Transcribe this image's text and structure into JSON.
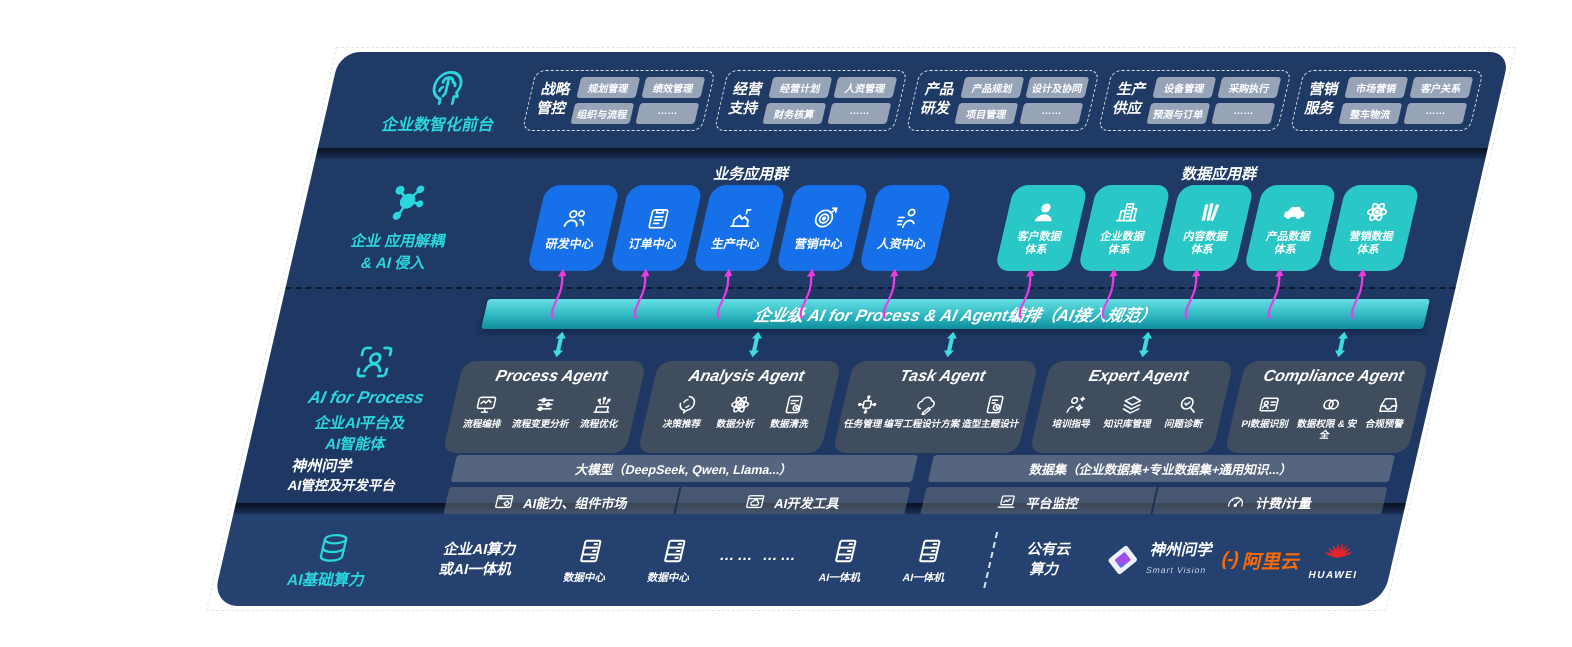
{
  "palette": {
    "band": "#203a66",
    "band_bottom": "#25416f",
    "cyan_accent": "#2bd7de",
    "blue_card": "#1570ea",
    "teal_card": "#29c7c5",
    "bus_bar_top": "#66dfe3",
    "bus_bar_bottom": "#0f8d9c",
    "agent_card": "#424e5f",
    "pink_arrow": "#ec3be2",
    "ali_orange": "#ff6a00",
    "huawei_red": "#e4232e"
  },
  "front": {
    "label": "企业数智化前台",
    "icon": "head-brain",
    "groups": [
      {
        "title": "战略管控",
        "chips": [
          "规划管理",
          "绩效管理",
          "组织与流程",
          "……"
        ]
      },
      {
        "title": "经营支持",
        "chips": [
          "经营计划",
          "人资管理",
          "财务核算",
          "……"
        ]
      },
      {
        "title": "产品研发",
        "chips": [
          "产品规划",
          "设计及协同",
          "项目管理",
          "……"
        ]
      },
      {
        "title": "生产供应",
        "chips": [
          "设备管理",
          "采购执行",
          "预测与订单",
          "……"
        ]
      },
      {
        "title": "营销服务",
        "chips": [
          "市场营销",
          "客户关系",
          "整车物流",
          "……"
        ]
      }
    ]
  },
  "decouple": {
    "label_line1": "企业 应用解耦",
    "label_line2": "& AI 侵入",
    "icon": "molecule",
    "biz": {
      "title": "业务应用群",
      "cards": [
        {
          "label": "研发中心",
          "icon": "people"
        },
        {
          "label": "订单中心",
          "icon": "clipboard"
        },
        {
          "label": "生产中心",
          "icon": "factory"
        },
        {
          "label": "营销中心",
          "icon": "target"
        },
        {
          "label": "人资中心",
          "icon": "person-wave"
        }
      ]
    },
    "data": {
      "title": "数据应用群",
      "cards": [
        {
          "label": "客户数据体系",
          "icon": "user"
        },
        {
          "label": "企业数据体系",
          "icon": "building"
        },
        {
          "label": "内容数据体系",
          "icon": "books"
        },
        {
          "label": "产品数据体系",
          "icon": "car"
        },
        {
          "label": "营销数据体系",
          "icon": "atom"
        }
      ]
    }
  },
  "platform": {
    "label_line1": "AI for Process",
    "label_line2": "企业AI平台及",
    "label_line3": "AI智能体",
    "icon": "scan-person",
    "bus_bar": "企业级 AI for Process & AI Agent编排（AI接入规范）",
    "agents": [
      {
        "name": "Process Agent",
        "items": [
          {
            "label": "流程编排",
            "icon": "monitor-wave"
          },
          {
            "label": "流程变更分析",
            "icon": "sliders"
          },
          {
            "label": "流程优化",
            "icon": "spark-box"
          }
        ]
      },
      {
        "name": "Analysis Agent",
        "items": [
          {
            "label": "决策推荐",
            "icon": "chat-head"
          },
          {
            "label": "数据分析",
            "icon": "atom"
          },
          {
            "label": "数据清洗",
            "icon": "doc-data"
          }
        ]
      },
      {
        "name": "Task Agent",
        "items": [
          {
            "label": "任务管理",
            "icon": "grid-node"
          },
          {
            "label": "编写工程设计方案",
            "icon": "cloud-pen"
          },
          {
            "label": "造型主题设计",
            "icon": "tablet-check"
          }
        ]
      },
      {
        "name": "Expert Agent",
        "items": [
          {
            "label": "培训指导",
            "icon": "person-spark"
          },
          {
            "label": "知识库管理",
            "icon": "layers"
          },
          {
            "label": "问题诊断",
            "icon": "search-check"
          }
        ]
      },
      {
        "name": "Compliance Agent",
        "items": [
          {
            "label": "PI数据识别",
            "icon": "id-card"
          },
          {
            "label": "数据权限 & 安全",
            "icon": "rings"
          },
          {
            "label": "合规预警",
            "icon": "inbox-alert"
          }
        ]
      }
    ],
    "dev": {
      "label_line1": "神州问学",
      "label_line2": "AI管控及开发平台",
      "models": {
        "header": "大模型（DeepSeek, Qwen, Llama...）",
        "cells": [
          {
            "label": "AI能力、组件市场",
            "icon": "window-gear"
          },
          {
            "label": "AI开发工具",
            "icon": "window-cloud"
          }
        ]
      },
      "datasets": {
        "header": "数据集（企业数据集+专业数据集+通用知识...）",
        "cells": [
          {
            "label": "平台监控",
            "icon": "laptop-chart"
          },
          {
            "label": "计费/计量",
            "icon": "gauge"
          }
        ]
      }
    }
  },
  "compute": {
    "label": "AI基础算力",
    "icon": "database",
    "onprem_line1": "企业AI算力",
    "onprem_line2": "或AI一体机",
    "nodes": [
      {
        "label": "数据中心",
        "icon": "server"
      },
      {
        "label": "数据中心",
        "icon": "server"
      }
    ],
    "ellipsis": "…… ……",
    "nodes2": [
      {
        "label": "AI一体机",
        "icon": "server"
      },
      {
        "label": "AI一体机",
        "icon": "server"
      }
    ],
    "cloud_line1": "公有云",
    "cloud_line2": "算力",
    "partners": {
      "szwx": {
        "name": "神州问学",
        "sub": "Smart Vision",
        "icon": "diamond-logo"
      },
      "aliyun": {
        "mark": "(-)",
        "name": "阿里云"
      },
      "huawei": {
        "name": "HUAWEI",
        "icon": "huawei-flower"
      }
    }
  }
}
